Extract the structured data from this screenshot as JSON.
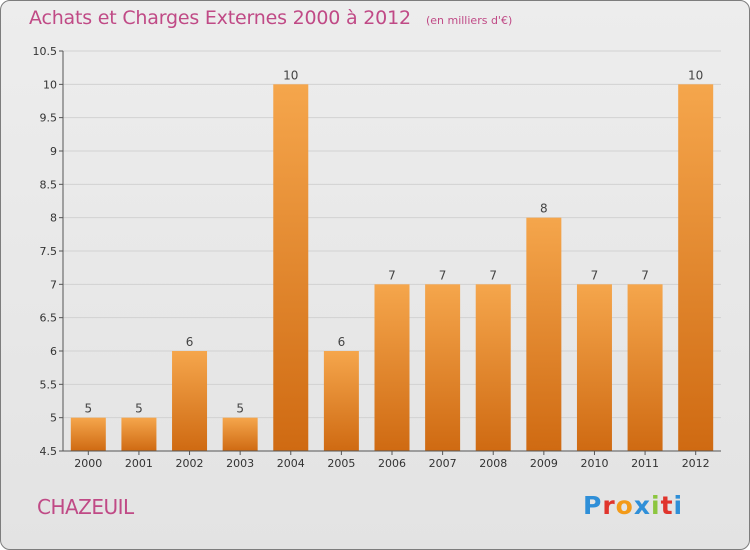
{
  "header": {
    "title": "Achats et Charges Externes 2000 à 2012",
    "unit": "(en milliers d'€)"
  },
  "footer": {
    "commune": "CHAZEUIL",
    "logo_text": "Proxiti",
    "logo_colors": [
      "#2f8fd8",
      "#e0342c",
      "#f39a18",
      "#2f8fd8",
      "#8cc63f",
      "#e0342c",
      "#2f8fd8"
    ]
  },
  "colors": {
    "bar_light": "#f5a64c",
    "bar_dark": "#cf6a12",
    "axis": "#555555",
    "grid": "#d2d2d2",
    "tick_text": "#333333",
    "value_text": "#444444",
    "accent": "#c04a86"
  },
  "chart_data": {
    "type": "bar",
    "categories": [
      "2000",
      "2001",
      "2002",
      "2003",
      "2004",
      "2005",
      "2006",
      "2007",
      "2008",
      "2009",
      "2010",
      "2011",
      "2012"
    ],
    "values": [
      5,
      5,
      6,
      5,
      10,
      6,
      7,
      7,
      7,
      8,
      7,
      7,
      10
    ],
    "value_labels": [
      "5",
      "5",
      "6",
      "5",
      "10",
      "6",
      "7",
      "7",
      "7",
      "8",
      "7",
      "7",
      "10"
    ],
    "ylim": [
      4.5,
      10.5
    ],
    "yticks": [
      4.5,
      5,
      5.5,
      6,
      6.5,
      7,
      7.5,
      8,
      8.5,
      9,
      9.5,
      10,
      10.5
    ],
    "ytick_labels": [
      "4.5",
      "5",
      "5.5",
      "6",
      "6.5",
      "7",
      "7.5",
      "8",
      "8.5",
      "9",
      "9.5",
      "10",
      "10.5"
    ],
    "grid": true,
    "title": "Achats et Charges Externes 2000 à 2012",
    "xlabel": "",
    "ylabel": ""
  }
}
